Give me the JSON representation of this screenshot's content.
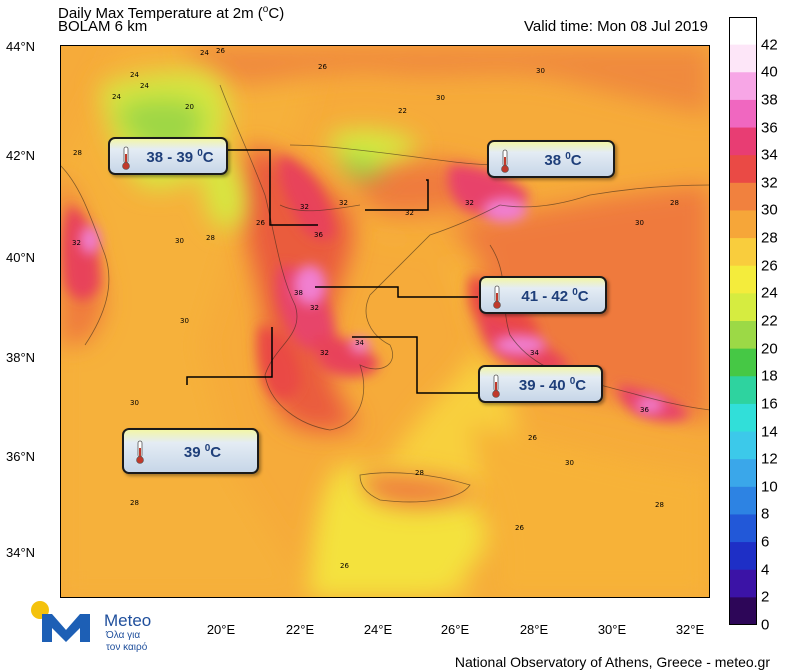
{
  "header": {
    "title_line1": "Daily Max Temperature at 2m (",
    "title_unit": "o",
    "title_unit_tail": "C)",
    "title_line2": "BOLAM 6 km",
    "valid_time": "Valid time: Mon 08 Jul 2019"
  },
  "axes": {
    "lat_labels": [
      "44°N",
      "42°N",
      "40°N",
      "38°N",
      "36°N",
      "34°N"
    ],
    "lon_labels": [
      "20°E",
      "22°E",
      "24°E",
      "26°E",
      "28°E",
      "30°E",
      "32°E"
    ]
  },
  "callouts": [
    {
      "text": "38 - 39 ",
      "unit": "0",
      "unit_tail": "C"
    },
    {
      "text": "38 ",
      "unit": "0",
      "unit_tail": "C"
    },
    {
      "text": "41 - 42 ",
      "unit": "0",
      "unit_tail": "C"
    },
    {
      "text": "39 - 40 ",
      "unit": "0",
      "unit_tail": "C"
    },
    {
      "text": "39 ",
      "unit": "0",
      "unit_tail": "C"
    }
  ],
  "map_labels": [
    "24",
    "26",
    "28",
    "30",
    "32",
    "34",
    "36",
    "38",
    "20",
    "22"
  ],
  "colorbar": {
    "labels": [
      "42",
      "40",
      "38",
      "36",
      "34",
      "32",
      "30",
      "28",
      "26",
      "24",
      "22",
      "20",
      "18",
      "16",
      "14",
      "12",
      "10",
      "8",
      "6",
      "4",
      "2",
      "0"
    ],
    "colors": [
      "#ffffff",
      "#fde6f8",
      "#f7a6e6",
      "#f067c0",
      "#e83d73",
      "#ea4a45",
      "#f1813e",
      "#f6a639",
      "#f9cd3d",
      "#f4ec3c",
      "#d6ec40",
      "#9cd946",
      "#46c845",
      "#2ed39f",
      "#31dfd9",
      "#3cc9ea",
      "#3aa7ea",
      "#2d83e3",
      "#2258d8",
      "#1e2fc6",
      "#3b13a6",
      "#2d0658"
    ]
  },
  "logo": {
    "name": "Meteo",
    "slogan1": "Όλα για",
    "slogan2": "τον καιρό"
  },
  "footer": {
    "credit": "National Observatory of Athens, Greece - meteo.gr"
  }
}
